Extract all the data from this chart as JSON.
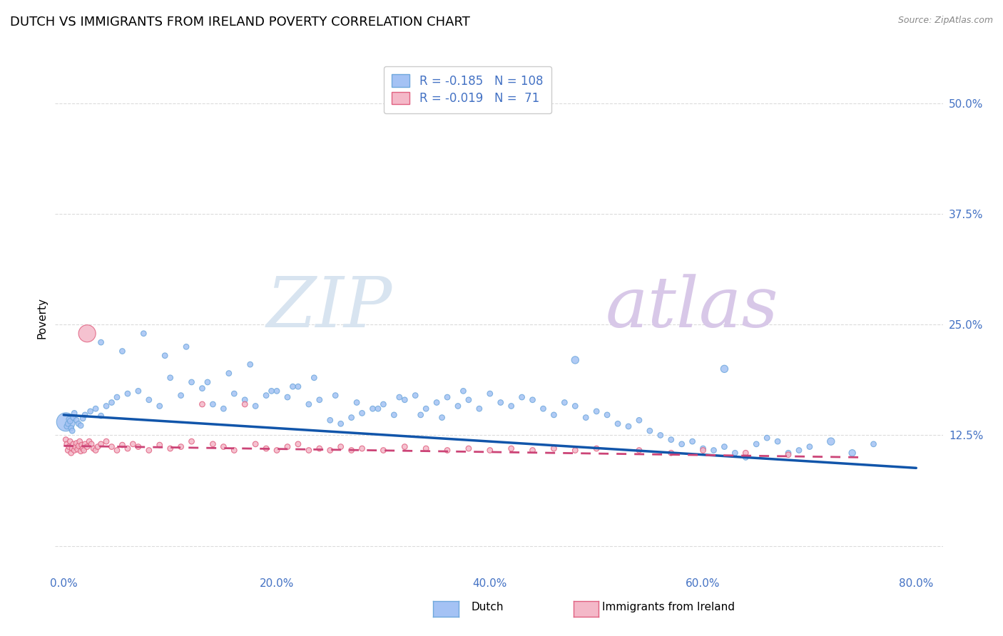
{
  "title": "DUTCH VS IMMIGRANTS FROM IRELAND POVERTY CORRELATION CHART",
  "source": "Source: ZipAtlas.com",
  "ylabel": "Poverty",
  "yticks": [
    0.0,
    0.125,
    0.25,
    0.375,
    0.5
  ],
  "ytick_labels": [
    "",
    "12.5%",
    "25.0%",
    "37.5%",
    "50.0%"
  ],
  "xlim": [
    -0.008,
    0.825
  ],
  "ylim": [
    -0.03,
    0.545
  ],
  "blue_color": "#a4c2f4",
  "blue_edge_color": "#6fa8dc",
  "pink_color": "#f4b8c8",
  "pink_edge_color": "#e06080",
  "blue_line_color": "#1155aa",
  "pink_line_color": "#cc4477",
  "axis_color": "#4472c4",
  "watermark_ZIP_color": "#d8e4f0",
  "watermark_atlas_color": "#d8c8e8",
  "grid_color": "#cccccc",
  "background_color": "#ffffff",
  "legend_R_blue": "-0.185",
  "legend_N_blue": "108",
  "legend_R_pink": "-0.019",
  "legend_N_pink": " 71",
  "blue_trend_x0": 0.0,
  "blue_trend_x1": 0.8,
  "blue_trend_y0": 0.148,
  "blue_trend_y1": 0.088,
  "pink_trend_x0": 0.0,
  "pink_trend_x1": 0.75,
  "pink_trend_y0": 0.113,
  "pink_trend_y1": 0.1,
  "blue_x": [
    0.002,
    0.003,
    0.004,
    0.005,
    0.006,
    0.007,
    0.008,
    0.009,
    0.01,
    0.012,
    0.014,
    0.016,
    0.018,
    0.02,
    0.025,
    0.03,
    0.035,
    0.04,
    0.045,
    0.05,
    0.06,
    0.07,
    0.08,
    0.09,
    0.1,
    0.11,
    0.12,
    0.13,
    0.14,
    0.15,
    0.16,
    0.17,
    0.18,
    0.19,
    0.2,
    0.21,
    0.22,
    0.23,
    0.24,
    0.25,
    0.26,
    0.27,
    0.28,
    0.29,
    0.3,
    0.31,
    0.32,
    0.33,
    0.34,
    0.35,
    0.36,
    0.37,
    0.38,
    0.39,
    0.4,
    0.41,
    0.42,
    0.43,
    0.44,
    0.45,
    0.46,
    0.47,
    0.48,
    0.49,
    0.5,
    0.51,
    0.52,
    0.53,
    0.54,
    0.55,
    0.56,
    0.57,
    0.58,
    0.59,
    0.6,
    0.61,
    0.62,
    0.63,
    0.64,
    0.65,
    0.66,
    0.67,
    0.68,
    0.69,
    0.7,
    0.72,
    0.74,
    0.76,
    0.62,
    0.48,
    0.035,
    0.055,
    0.075,
    0.095,
    0.115,
    0.135,
    0.155,
    0.175,
    0.195,
    0.215,
    0.235,
    0.255,
    0.275,
    0.295,
    0.315,
    0.335,
    0.355,
    0.375
  ],
  "blue_y": [
    0.14,
    0.135,
    0.138,
    0.143,
    0.141,
    0.133,
    0.13,
    0.145,
    0.15,
    0.142,
    0.138,
    0.136,
    0.144,
    0.148,
    0.152,
    0.155,
    0.147,
    0.158,
    0.162,
    0.168,
    0.172,
    0.175,
    0.165,
    0.158,
    0.19,
    0.17,
    0.185,
    0.178,
    0.16,
    0.155,
    0.172,
    0.165,
    0.158,
    0.17,
    0.175,
    0.168,
    0.18,
    0.16,
    0.165,
    0.142,
    0.138,
    0.145,
    0.15,
    0.155,
    0.16,
    0.148,
    0.165,
    0.17,
    0.155,
    0.162,
    0.168,
    0.158,
    0.165,
    0.155,
    0.172,
    0.162,
    0.158,
    0.168,
    0.165,
    0.155,
    0.148,
    0.162,
    0.158,
    0.145,
    0.152,
    0.148,
    0.138,
    0.135,
    0.142,
    0.13,
    0.125,
    0.12,
    0.115,
    0.118,
    0.11,
    0.108,
    0.112,
    0.105,
    0.1,
    0.115,
    0.122,
    0.118,
    0.105,
    0.108,
    0.112,
    0.118,
    0.105,
    0.115,
    0.2,
    0.21,
    0.23,
    0.22,
    0.24,
    0.215,
    0.225,
    0.185,
    0.195,
    0.205,
    0.175,
    0.18,
    0.19,
    0.17,
    0.162,
    0.155,
    0.168,
    0.148,
    0.145,
    0.175
  ],
  "blue_sizes": [
    350,
    30,
    30,
    30,
    30,
    30,
    30,
    30,
    30,
    30,
    30,
    30,
    30,
    30,
    30,
    30,
    30,
    30,
    30,
    30,
    30,
    30,
    30,
    30,
    30,
    30,
    30,
    30,
    30,
    30,
    30,
    30,
    30,
    30,
    30,
    30,
    30,
    30,
    30,
    30,
    30,
    30,
    30,
    30,
    30,
    30,
    30,
    30,
    30,
    30,
    30,
    30,
    30,
    30,
    30,
    30,
    30,
    30,
    30,
    30,
    30,
    30,
    30,
    30,
    30,
    30,
    30,
    30,
    30,
    30,
    30,
    30,
    30,
    30,
    30,
    30,
    30,
    30,
    30,
    30,
    30,
    30,
    30,
    30,
    30,
    55,
    45,
    30,
    55,
    55,
    30,
    30,
    30,
    30,
    30,
    30,
    30,
    30,
    30,
    30,
    30,
    30,
    30,
    30,
    30,
    30,
    30,
    30
  ],
  "pink_x": [
    0.002,
    0.003,
    0.004,
    0.005,
    0.006,
    0.007,
    0.008,
    0.009,
    0.01,
    0.011,
    0.012,
    0.013,
    0.014,
    0.015,
    0.016,
    0.017,
    0.018,
    0.019,
    0.02,
    0.022,
    0.024,
    0.026,
    0.028,
    0.03,
    0.032,
    0.035,
    0.04,
    0.045,
    0.05,
    0.055,
    0.06,
    0.065,
    0.07,
    0.08,
    0.09,
    0.1,
    0.11,
    0.12,
    0.13,
    0.14,
    0.15,
    0.16,
    0.17,
    0.18,
    0.19,
    0.2,
    0.21,
    0.22,
    0.23,
    0.24,
    0.25,
    0.26,
    0.27,
    0.28,
    0.3,
    0.32,
    0.34,
    0.36,
    0.38,
    0.4,
    0.42,
    0.44,
    0.46,
    0.48,
    0.5,
    0.54,
    0.57,
    0.6,
    0.64,
    0.68,
    0.022
  ],
  "pink_y": [
    0.12,
    0.115,
    0.108,
    0.112,
    0.118,
    0.105,
    0.11,
    0.115,
    0.108,
    0.112,
    0.116,
    0.109,
    0.113,
    0.118,
    0.107,
    0.114,
    0.11,
    0.108,
    0.115,
    0.112,
    0.118,
    0.115,
    0.11,
    0.108,
    0.112,
    0.115,
    0.118,
    0.112,
    0.108,
    0.114,
    0.11,
    0.115,
    0.112,
    0.108,
    0.114,
    0.11,
    0.112,
    0.118,
    0.16,
    0.115,
    0.112,
    0.108,
    0.16,
    0.115,
    0.11,
    0.108,
    0.112,
    0.115,
    0.108,
    0.11,
    0.108,
    0.112,
    0.108,
    0.11,
    0.108,
    0.112,
    0.11,
    0.108,
    0.11,
    0.108,
    0.11,
    0.108,
    0.11,
    0.108,
    0.11,
    0.108,
    0.105,
    0.108,
    0.105,
    0.103,
    0.24
  ],
  "pink_sizes": [
    30,
    30,
    30,
    30,
    30,
    30,
    30,
    30,
    30,
    30,
    30,
    30,
    30,
    30,
    30,
    30,
    30,
    30,
    30,
    30,
    30,
    30,
    30,
    30,
    30,
    30,
    30,
    30,
    30,
    30,
    30,
    30,
    30,
    30,
    30,
    30,
    30,
    30,
    30,
    30,
    30,
    30,
    30,
    30,
    30,
    30,
    30,
    30,
    30,
    30,
    30,
    30,
    30,
    30,
    30,
    30,
    30,
    30,
    30,
    30,
    30,
    30,
    30,
    30,
    30,
    30,
    30,
    30,
    30,
    30,
    300
  ]
}
